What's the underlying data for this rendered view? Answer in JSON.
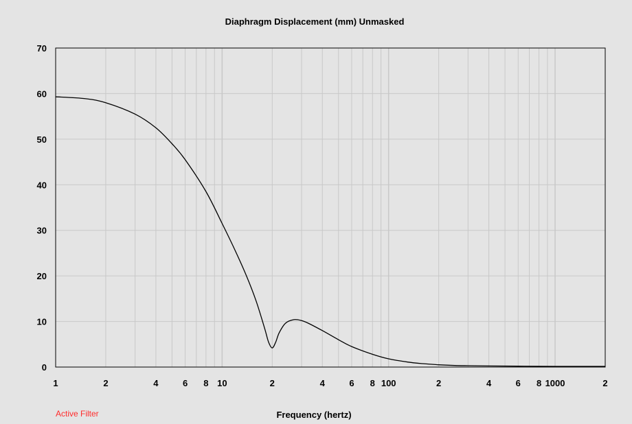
{
  "chart_data": {
    "type": "line",
    "title": "Diaphragm Displacement (mm)   Unmasked",
    "xlabel": "Frequency (hertz)",
    "ylabel": "",
    "x_scale": "log",
    "xlim": [
      1,
      2000
    ],
    "ylim": [
      0,
      70
    ],
    "grid": true,
    "x_ticks": [
      {
        "value": 1,
        "label": "1"
      },
      {
        "value": 2,
        "label": "2"
      },
      {
        "value": 4,
        "label": "4"
      },
      {
        "value": 6,
        "label": "6"
      },
      {
        "value": 8,
        "label": "8"
      },
      {
        "value": 10,
        "label": "10"
      },
      {
        "value": 20,
        "label": "2"
      },
      {
        "value": 40,
        "label": "4"
      },
      {
        "value": 60,
        "label": "6"
      },
      {
        "value": 80,
        "label": "8"
      },
      {
        "value": 100,
        "label": "100"
      },
      {
        "value": 200,
        "label": "2"
      },
      {
        "value": 400,
        "label": "4"
      },
      {
        "value": 600,
        "label": "6"
      },
      {
        "value": 800,
        "label": "8"
      },
      {
        "value": 1000,
        "label": "1000"
      },
      {
        "value": 2000,
        "label": "2"
      }
    ],
    "y_ticks": [
      0,
      10,
      20,
      30,
      40,
      50,
      60,
      70
    ],
    "series": [
      {
        "color": "#000000",
        "x": [
          1,
          1.5,
          2,
          3,
          4,
          5,
          6,
          8,
          10,
          12,
          14,
          16,
          18,
          19,
          20,
          21,
          22,
          24,
          27,
          30,
          33,
          40,
          50,
          60,
          80,
          100,
          130,
          160,
          200,
          250,
          300,
          400,
          600,
          1000,
          2000
        ],
        "y": [
          59.3,
          58.9,
          58.0,
          55.5,
          52.5,
          49.0,
          45.5,
          38.5,
          31.5,
          25.5,
          20.0,
          14.5,
          8.5,
          5.5,
          4.2,
          5.5,
          7.5,
          9.6,
          10.4,
          10.2,
          9.6,
          8.0,
          6.0,
          4.5,
          2.8,
          1.8,
          1.1,
          0.75,
          0.5,
          0.35,
          0.3,
          0.25,
          0.2,
          0.15,
          0.15
        ]
      }
    ]
  },
  "status": {
    "active_filter": "Active Filter"
  },
  "colors": {
    "background": "#e4e4e4",
    "grid": "#c8c8c8",
    "curve": "#000000",
    "filter_label": "#ff2a2a"
  }
}
